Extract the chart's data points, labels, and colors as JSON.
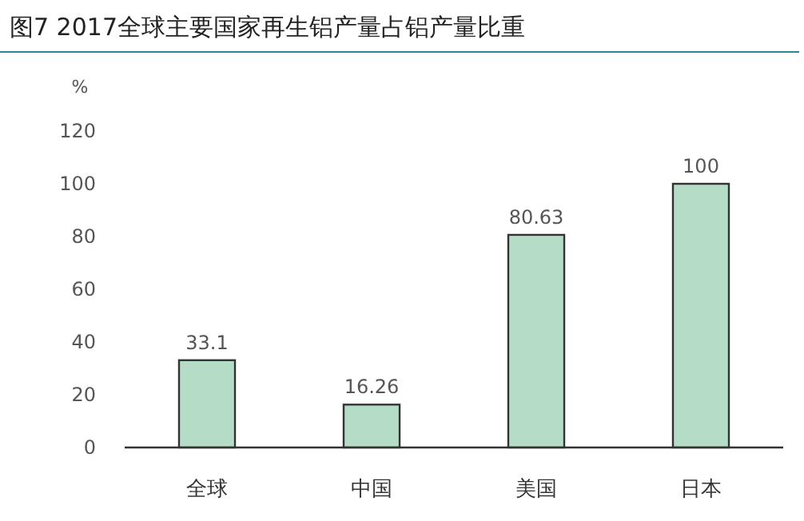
{
  "chart_data": {
    "type": "bar",
    "title": "图7 2017全球主要国家再生铝产量占铝产量比重",
    "ylabel": "%",
    "categories": [
      "全球",
      "中国",
      "美国",
      "日本"
    ],
    "values": [
      33.1,
      16.26,
      80.63,
      100
    ],
    "color": "#b5dcc7",
    "ylim": [
      0,
      120
    ],
    "yticks": [
      0,
      20,
      40,
      60,
      80,
      100,
      120
    ],
    "data_labels": true
  }
}
